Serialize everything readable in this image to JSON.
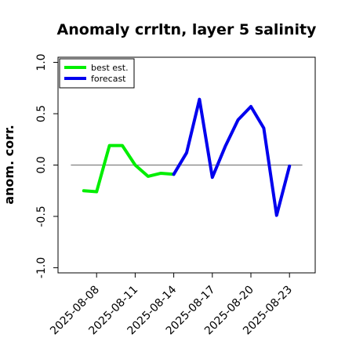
{
  "chart_data": {
    "type": "line",
    "title": "Anomaly crrltn, layer 5 salinity",
    "ylabel": "anom. corr.",
    "xlabel": "",
    "ylim": [
      -1.05,
      1.05
    ],
    "yticks": [
      "-1.0",
      "-0.5",
      "0.0",
      "0.5",
      "1.0"
    ],
    "ytick_values": [
      -1.0,
      -0.5,
      0.0,
      0.5,
      1.0
    ],
    "xlim": [
      "2025-08-05",
      "2025-08-25"
    ],
    "xticks": [
      "2025-08-08",
      "2025-08-11",
      "2025-08-14",
      "2025-08-17",
      "2025-08-20",
      "2025-08-23"
    ],
    "highlight_tick": "2025-08-14",
    "highlight_color": "#228b22",
    "reference_line": 0.0,
    "reference_line_range": [
      "2025-08-06",
      "2025-08-24"
    ],
    "reference_color": "#808080",
    "legend_position": "top-left",
    "series": [
      {
        "name": "best est.",
        "color": "#00ee00",
        "x": [
          "2025-08-07",
          "2025-08-08",
          "2025-08-09",
          "2025-08-10",
          "2025-08-11",
          "2025-08-12",
          "2025-08-13",
          "2025-08-14"
        ],
        "values": [
          -0.25,
          -0.26,
          0.19,
          0.19,
          0.0,
          -0.11,
          -0.08,
          -0.09
        ]
      },
      {
        "name": "forecast",
        "color": "#0000ee",
        "x": [
          "2025-08-14",
          "2025-08-15",
          "2025-08-16",
          "2025-08-17",
          "2025-08-18",
          "2025-08-19",
          "2025-08-20",
          "2025-08-21",
          "2025-08-22",
          "2025-08-23"
        ],
        "values": [
          -0.09,
          0.12,
          0.64,
          -0.12,
          0.18,
          0.44,
          0.57,
          0.36,
          -0.49,
          -0.01
        ]
      }
    ]
  }
}
